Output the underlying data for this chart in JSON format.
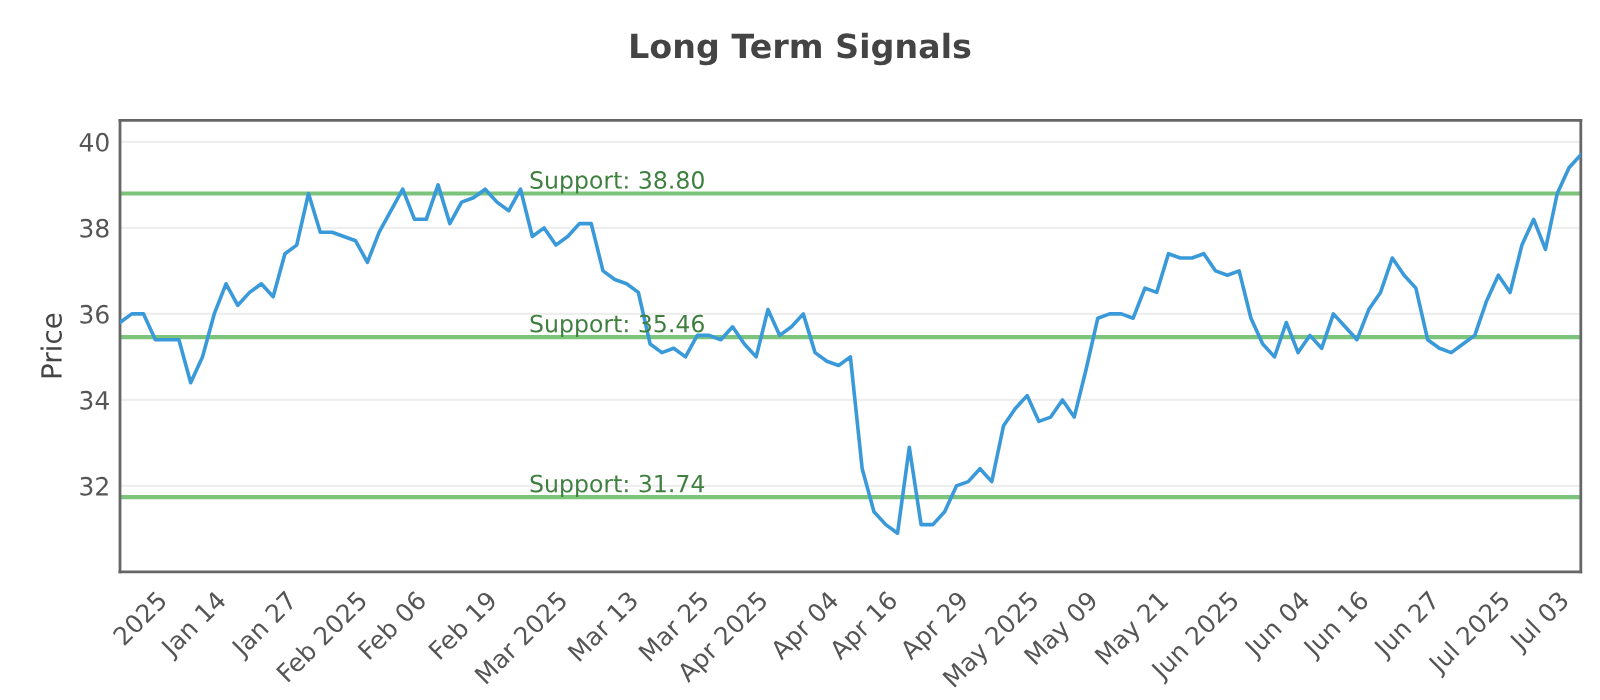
{
  "chart_data": {
    "type": "line",
    "title": "Long Term Signals",
    "ylabel": "Price",
    "categories": [
      null,
      null,
      null,
      "2025",
      null,
      null,
      null,
      null,
      "Jan 14",
      null,
      null,
      null,
      null,
      null,
      "Jan 27",
      null,
      null,
      null,
      null,
      null,
      "Feb 2025",
      null,
      null,
      null,
      null,
      "Feb 06",
      null,
      null,
      null,
      null,
      null,
      "Feb 19",
      null,
      null,
      null,
      null,
      null,
      "Mar 2025",
      null,
      null,
      null,
      null,
      null,
      "Mar 13",
      null,
      null,
      null,
      null,
      null,
      "Mar 25",
      null,
      null,
      null,
      null,
      "Apr 2025",
      null,
      null,
      null,
      null,
      null,
      "Apr 04",
      null,
      null,
      null,
      null,
      "Apr 16",
      null,
      null,
      null,
      null,
      null,
      "Apr 29",
      null,
      null,
      null,
      null,
      null,
      "May 2025",
      null,
      null,
      null,
      null,
      "May 09",
      null,
      null,
      null,
      null,
      null,
      "May 21",
      null,
      null,
      null,
      null,
      null,
      "Jun 2025",
      null,
      null,
      null,
      null,
      null,
      "Jun 04",
      null,
      null,
      null,
      null,
      "Jun 16",
      null,
      null,
      null,
      null,
      null,
      "Jun 27",
      null,
      null,
      null,
      null,
      null,
      "Jul 2025",
      null,
      null,
      null,
      null,
      "Jul 03",
      null,
      null
    ],
    "series": [
      {
        "color": "#3a9ad9",
        "values": [
          35.8,
          36.0,
          36.0,
          35.4,
          35.4,
          35.4,
          34.4,
          35.0,
          36.0,
          36.7,
          36.2,
          36.5,
          36.7,
          36.4,
          37.4,
          37.6,
          38.8,
          37.9,
          37.9,
          37.8,
          37.7,
          37.2,
          37.9,
          38.4,
          38.9,
          38.2,
          38.2,
          39.0,
          38.1,
          38.6,
          38.7,
          38.9,
          38.6,
          38.4,
          38.9,
          37.8,
          38.0,
          37.6,
          37.8,
          38.1,
          38.1,
          37.0,
          36.8,
          36.7,
          36.5,
          35.3,
          35.1,
          35.2,
          35.0,
          35.5,
          35.5,
          35.4,
          35.7,
          35.3,
          35.0,
          36.1,
          35.5,
          35.7,
          36.0,
          35.1,
          34.9,
          34.8,
          35.0,
          32.4,
          31.4,
          31.1,
          30.9,
          32.9,
          31.1,
          31.1,
          31.4,
          32.0,
          32.1,
          32.4,
          32.1,
          33.4,
          33.8,
          34.1,
          33.5,
          33.6,
          34.0,
          33.6,
          34.7,
          35.9,
          36.0,
          36.0,
          35.9,
          36.6,
          36.5,
          37.4,
          37.3,
          37.3,
          37.4,
          37.0,
          36.9,
          37.0,
          35.9,
          35.3,
          35.0,
          35.8,
          35.1,
          35.5,
          35.2,
          36.0,
          35.7,
          35.4,
          36.1,
          36.5,
          37.3,
          36.9,
          36.6,
          35.4,
          35.2,
          35.1,
          35.3,
          35.5,
          36.3,
          36.9,
          36.5,
          37.6,
          38.2,
          37.5,
          38.8,
          39.4,
          39.7
        ]
      }
    ],
    "ylim": [
      30,
      40.5
    ],
    "yticks": [
      32,
      34,
      36,
      38,
      40
    ],
    "grid": "y",
    "marker": "none",
    "line_style": "solid",
    "ref_lines": [
      {
        "axis": "y",
        "value": 38.8,
        "label": "Support: 38.80",
        "color": "#7cc47c"
      },
      {
        "axis": "y",
        "value": 35.46,
        "label": "Support: 35.46",
        "color": "#7cc47c"
      },
      {
        "axis": "y",
        "value": 31.74,
        "label": "Support: 31.74",
        "color": "#7cc47c"
      }
    ]
  }
}
